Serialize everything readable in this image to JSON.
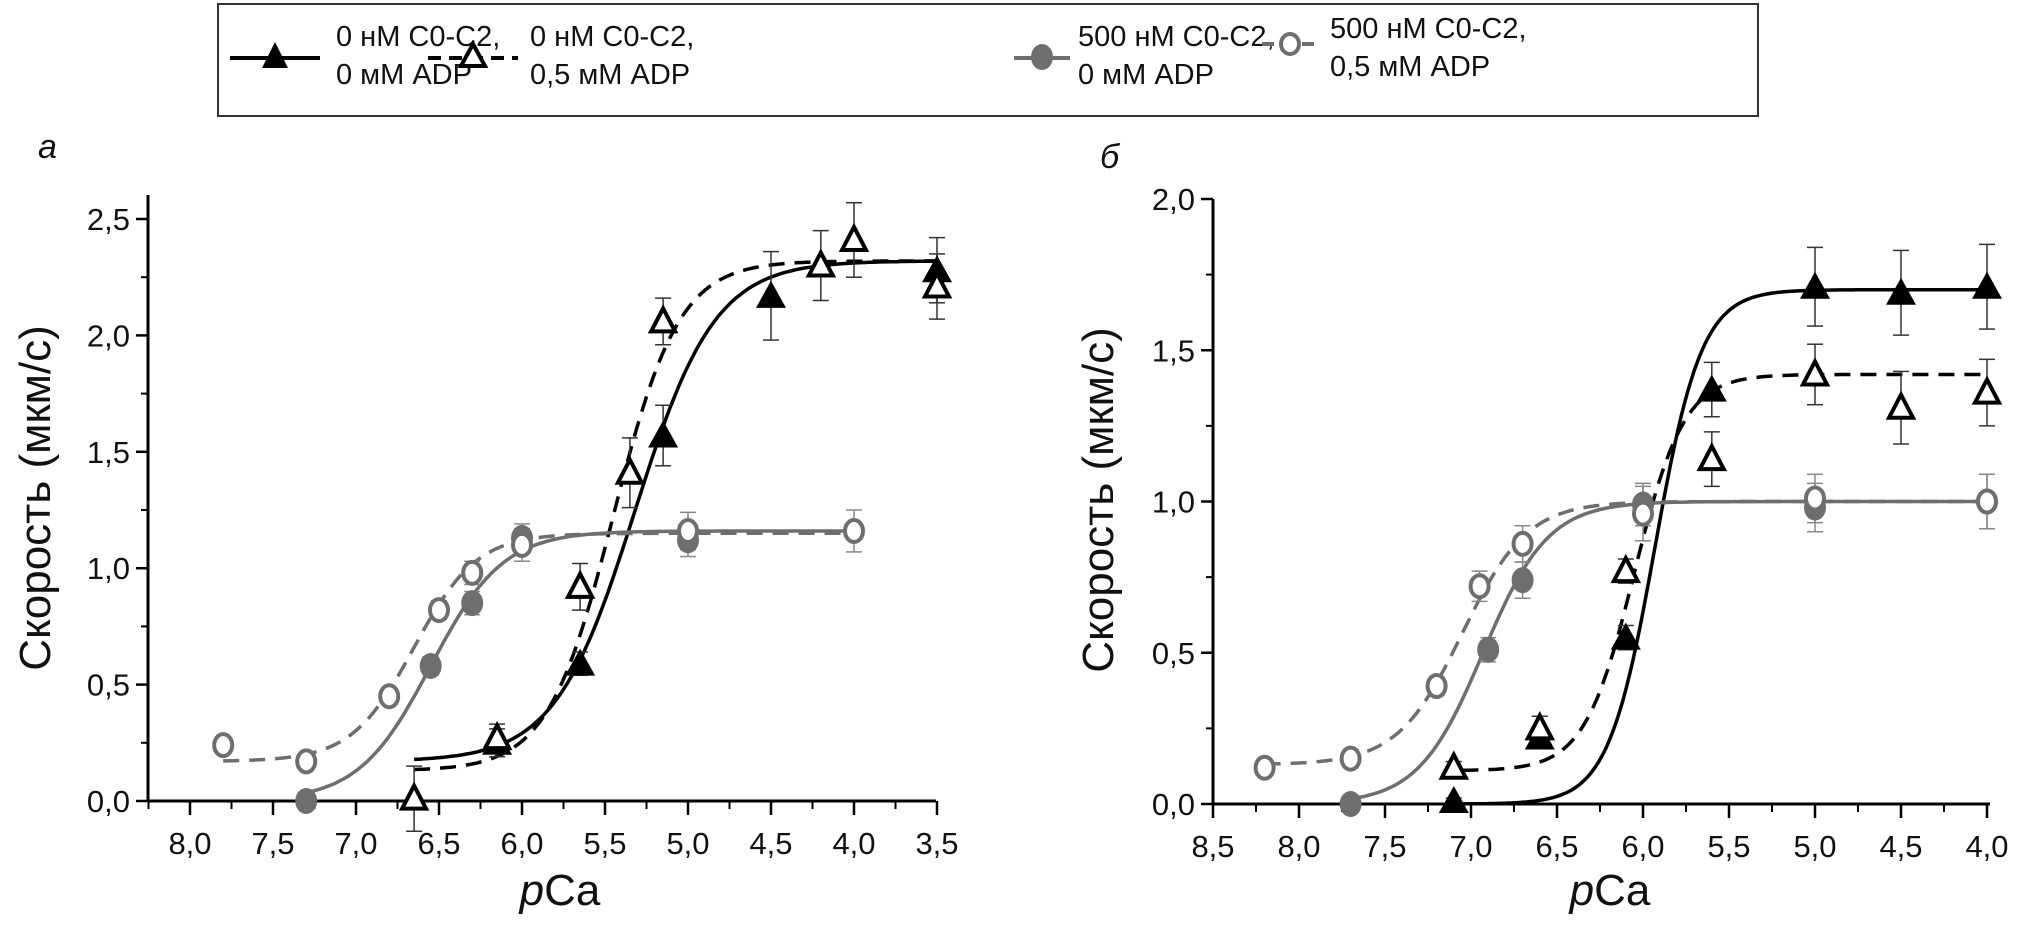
{
  "legend": {
    "items": [
      {
        "line1": "0 нМ C0-C2,",
        "line2": "0 мМ ADP",
        "series": "s1"
      },
      {
        "line1": "0 нМ C0-C2,",
        "line2": "0,5 мМ ADP",
        "series": "s2"
      },
      {
        "line1": "500 нМ C0-C2,",
        "line2": "0 мМ  ADP",
        "series": "s3"
      },
      {
        "line1": "500 нМ C0-C2,",
        "line2": "0,5 мМ ADP",
        "series": "s4"
      }
    ]
  },
  "styles": {
    "s1": {
      "color": "#000000",
      "marker": "triangle-filled",
      "line": "solid"
    },
    "s2": {
      "color": "#000000",
      "marker": "triangle-open",
      "line": "dashed"
    },
    "s3": {
      "color": "#6e6e6e",
      "marker": "circle-filled",
      "line": "solid"
    },
    "s4": {
      "color": "#6e6e6e",
      "marker": "circle-open",
      "line": "dashed"
    }
  },
  "chart_data": [
    {
      "type": "scatter",
      "panel_label": "а",
      "xlabel_italic": "p",
      "xlabel_rest": "Ca",
      "ylabel": "Скорость (мкм/с)",
      "xlim": [
        8.24,
        3.25
      ],
      "ylim": [
        0,
        2.58
      ],
      "x_ticks": [
        "8,0",
        "7,5",
        "7,0",
        "6,5",
        "6,0",
        "5,5",
        "5,0",
        "4,5",
        "4,0",
        "3,5"
      ],
      "x_tick_values": [
        8.0,
        7.5,
        7.0,
        6.5,
        6.0,
        5.5,
        5.0,
        4.5,
        4.0,
        3.5
      ],
      "y_ticks": [
        "0,0",
        "0,5",
        "1,0",
        "1,5",
        "2,0",
        "2,5"
      ],
      "y_tick_values": [
        0,
        0.5,
        1.0,
        1.5,
        2.0,
        2.5
      ],
      "grid": false,
      "series": [
        {
          "id": "s1",
          "name": "0 нМ C0-C2, 0 мМ ADP",
          "points": [
            {
              "x": 6.15,
              "y": 0.25,
              "err": 0.06
            },
            {
              "x": 5.65,
              "y": 0.59,
              "err": 0.05
            },
            {
              "x": 5.15,
              "y": 1.57,
              "err": 0.13
            },
            {
              "x": 4.5,
              "y": 2.17,
              "err": 0.19
            },
            {
              "x": 3.5,
              "y": 2.28,
              "err": 0.14
            }
          ],
          "fit": {
            "min": 0.17,
            "max": 2.32,
            "pca50": 5.32,
            "n": 1.8,
            "xfrom": 6.65,
            "xto": 3.5
          }
        },
        {
          "id": "s2",
          "name": "0 нМ C0-C2, 0,5 мМ ADP",
          "points": [
            {
              "x": 6.65,
              "y": 0.01,
              "err": 0.14
            },
            {
              "x": 6.15,
              "y": 0.27,
              "err": 0.06
            },
            {
              "x": 5.65,
              "y": 0.92,
              "err": 0.1
            },
            {
              "x": 5.35,
              "y": 1.41,
              "err": 0.15
            },
            {
              "x": 5.15,
              "y": 2.06,
              "err": 0.1
            },
            {
              "x": 4.2,
              "y": 2.3,
              "err": 0.15
            },
            {
              "x": 4.0,
              "y": 2.41,
              "err": 0.16
            },
            {
              "x": 3.5,
              "y": 2.21,
              "err": 0.14
            }
          ],
          "fit": {
            "min": 0.13,
            "max": 2.32,
            "pca50": 5.45,
            "n": 2.2,
            "xfrom": 6.65,
            "xto": 3.5
          }
        },
        {
          "id": "s3",
          "name": "500 нМ C0-C2, 0 мМ ADP",
          "points": [
            {
              "x": 7.3,
              "y": 0.0,
              "err": 0.02
            },
            {
              "x": 6.55,
              "y": 0.58,
              "err": 0.04
            },
            {
              "x": 6.3,
              "y": 0.85,
              "err": 0.05
            },
            {
              "x": 6.0,
              "y": 1.13,
              "err": 0.06
            },
            {
              "x": 5.0,
              "y": 1.12,
              "err": 0.07
            }
          ],
          "fit": {
            "min": 0.0,
            "max": 1.16,
            "pca50": 6.55,
            "n": 2.0,
            "xfrom": 7.3,
            "xto": 4.0
          }
        },
        {
          "id": "s4",
          "name": "500 нМ C0-C2, 0,5 мМ ADP",
          "points": [
            {
              "x": 7.8,
              "y": 0.24,
              "err": 0.02
            },
            {
              "x": 7.3,
              "y": 0.17,
              "err": 0.03
            },
            {
              "x": 6.8,
              "y": 0.45,
              "err": 0.03
            },
            {
              "x": 6.5,
              "y": 0.82,
              "err": 0.04
            },
            {
              "x": 6.3,
              "y": 0.98,
              "err": 0.05
            },
            {
              "x": 6.0,
              "y": 1.1,
              "err": 0.07
            },
            {
              "x": 5.0,
              "y": 1.16,
              "err": 0.08
            },
            {
              "x": 4.0,
              "y": 1.16,
              "err": 0.09
            }
          ],
          "fit": {
            "min": 0.17,
            "max": 1.15,
            "pca50": 6.65,
            "n": 2.3,
            "xfrom": 7.8,
            "xto": 4.0
          }
        }
      ]
    },
    {
      "type": "scatter",
      "panel_label": "б",
      "xlabel_italic": "p",
      "xlabel_rest": "Ca",
      "ylabel": "Скорость (мкм/с)",
      "xlim": [
        8.5,
        3.8
      ],
      "ylim": [
        0,
        2.0
      ],
      "x_ticks": [
        "8,5",
        "8,0",
        "7,5",
        "7,0",
        "6,5",
        "6,0",
        "5,5",
        "5,0",
        "4,5",
        "4,0"
      ],
      "x_tick_values": [
        8.5,
        8.0,
        7.5,
        7.0,
        6.5,
        6.0,
        5.5,
        5.0,
        4.5,
        4.0
      ],
      "y_ticks": [
        "0,0",
        "0,5",
        "1,0",
        "1,5",
        "2,0"
      ],
      "y_tick_values": [
        0,
        0.5,
        1.0,
        1.5,
        2.0
      ],
      "grid": false,
      "series": [
        {
          "id": "s1",
          "name": "0 нМ C0-C2, 0 мМ ADP",
          "points": [
            {
              "x": 7.1,
              "y": 0.01,
              "err": 0.01
            },
            {
              "x": 6.6,
              "y": 0.22,
              "err": 0.03
            },
            {
              "x": 6.1,
              "y": 0.55,
              "err": 0.04
            },
            {
              "x": 5.6,
              "y": 1.37,
              "err": 0.09
            },
            {
              "x": 5.0,
              "y": 1.71,
              "err": 0.13
            },
            {
              "x": 4.5,
              "y": 1.69,
              "err": 0.14
            },
            {
              "x": 4.0,
              "y": 1.71,
              "err": 0.14
            }
          ],
          "fit": {
            "min": 0.0,
            "max": 1.7,
            "pca50": 5.93,
            "n": 3.2,
            "xfrom": 7.1,
            "xto": 4.0
          }
        },
        {
          "id": "s2",
          "name": "0 нМ C0-C2, 0,5 мМ ADP",
          "points": [
            {
              "x": 7.1,
              "y": 0.12,
              "err": 0.02
            },
            {
              "x": 6.6,
              "y": 0.25,
              "err": 0.04
            },
            {
              "x": 6.1,
              "y": 0.77,
              "err": 0.04
            },
            {
              "x": 5.6,
              "y": 1.14,
              "err": 0.09
            },
            {
              "x": 5.0,
              "y": 1.42,
              "err": 0.1
            },
            {
              "x": 4.5,
              "y": 1.31,
              "err": 0.12
            },
            {
              "x": 4.0,
              "y": 1.36,
              "err": 0.11
            }
          ],
          "fit": {
            "min": 0.11,
            "max": 1.42,
            "pca50": 6.05,
            "n": 3.0,
            "xfrom": 7.05,
            "xto": 4.0
          }
        },
        {
          "id": "s3",
          "name": "500 нМ C0-C2, 0 мМ ADP",
          "points": [
            {
              "x": 7.7,
              "y": 0.0,
              "err": 0.02
            },
            {
              "x": 6.9,
              "y": 0.51,
              "err": 0.04
            },
            {
              "x": 6.7,
              "y": 0.74,
              "err": 0.06
            },
            {
              "x": 6.0,
              "y": 0.99,
              "err": 0.07
            },
            {
              "x": 5.0,
              "y": 0.98,
              "err": 0.08
            },
            {
              "x": 4.0,
              "y": 1.0,
              "err": 0.09
            }
          ],
          "fit": {
            "min": 0.0,
            "max": 1.0,
            "pca50": 6.93,
            "n": 2.3,
            "xfrom": 7.7,
            "xto": 4.0
          }
        },
        {
          "id": "s4",
          "name": "500 нМ C0-C2, 0,5 мМ ADP",
          "points": [
            {
              "x": 8.2,
              "y": 0.12,
              "err": 0.02
            },
            {
              "x": 7.7,
              "y": 0.15,
              "err": 0.03
            },
            {
              "x": 7.2,
              "y": 0.39,
              "err": 0.03
            },
            {
              "x": 6.95,
              "y": 0.72,
              "err": 0.05
            },
            {
              "x": 6.7,
              "y": 0.86,
              "err": 0.06
            },
            {
              "x": 6.0,
              "y": 0.96,
              "err": 0.09
            },
            {
              "x": 5.0,
              "y": 1.01,
              "err": 0.08
            },
            {
              "x": 4.0,
              "y": 1.0,
              "err": 0.09
            }
          ],
          "fit": {
            "min": 0.13,
            "max": 1.0,
            "pca50": 7.05,
            "n": 2.3,
            "xfrom": 8.2,
            "xto": 4.0
          }
        }
      ]
    }
  ]
}
